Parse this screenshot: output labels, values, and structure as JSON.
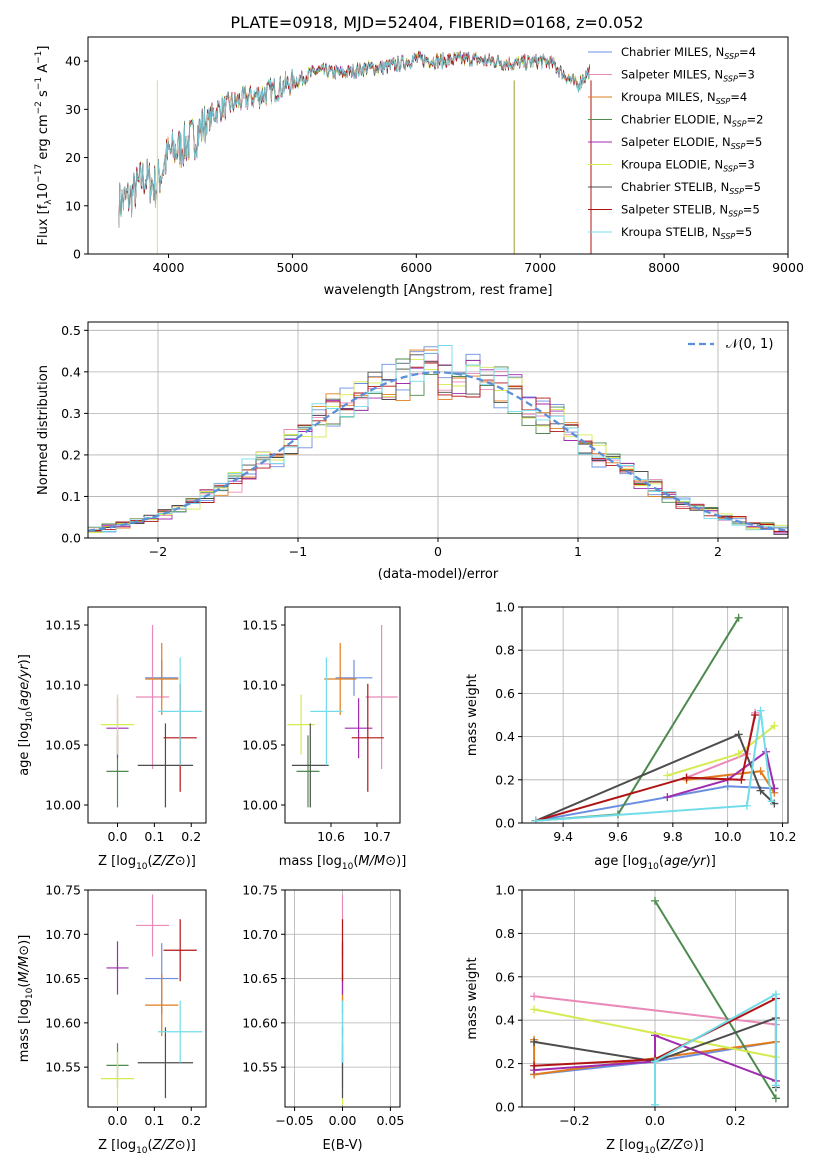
{
  "title": "PLATE=0918, MJD=52404, FIBERID=0168, z=0.052",
  "colors": {
    "Chabrier MILES": "#6b8fe0",
    "Salpeter MILES": "#e98ab8",
    "Kroupa MILES": "#e07c1c",
    "Chabrier ELODIE": "#4e8a4e",
    "Salpeter ELODIE": "#a02cb0",
    "Kroupa ELODIE": "#d6ea52",
    "Chabrier STELIB": "#4d4d4d",
    "Salpeter STELIB": "#b01515",
    "Kroupa STELIB": "#72dcea"
  },
  "chart_data": [
    {
      "id": "spectrum",
      "type": "line",
      "xlabel": "wavelength [Angstrom, rest frame]",
      "ylabel_main": "Flux [f",
      "ylabel_sub1": "λ",
      "ylabel_mid": "10",
      "ylabel_sup1": "−17",
      "ylabel_mid2": " erg cm",
      "ylabel_sup2": "−2",
      "ylabel_mid3": " s",
      "ylabel_sup3": "−1",
      "ylabel_mid4": " A",
      "ylabel_sup4": "−1",
      "ylabel_end": "]",
      "xlim": [
        3350,
        9000
      ],
      "ylim": [
        0,
        45
      ],
      "xticks": [
        4000,
        5000,
        6000,
        7000,
        8000,
        9000
      ],
      "yticks": [
        0,
        10,
        20,
        30,
        40
      ],
      "envelope_x": [
        3600,
        3700,
        3800,
        3900,
        4000,
        4100,
        4200,
        4300,
        4400,
        4500,
        4600,
        4800,
        5000,
        5200,
        5400,
        5600,
        5800,
        6000,
        6200,
        6400,
        6600,
        6800,
        7000,
        7100,
        7200,
        7300,
        7400
      ],
      "envelope_y": [
        10.5,
        12,
        16,
        14,
        21,
        22,
        24,
        27,
        30,
        31,
        32,
        33.5,
        35.5,
        38,
        37.5,
        38.5,
        39,
        40.5,
        40,
        40.5,
        40,
        39.5,
        40,
        39.5,
        37,
        35,
        38
      ],
      "legend": [
        {
          "model": "Chabrier MILES",
          "n": "4"
        },
        {
          "model": "Salpeter MILES",
          "n": "3"
        },
        {
          "model": "Kroupa MILES",
          "n": "4"
        },
        {
          "model": "Chabrier ELODIE",
          "n": "2"
        },
        {
          "model": "Salpeter ELODIE",
          "n": "5"
        },
        {
          "model": "Kroupa ELODIE",
          "n": "3"
        },
        {
          "model": "Chabrier STELIB",
          "n": "5"
        },
        {
          "model": "Salpeter STELIB",
          "n": "5"
        },
        {
          "model": "Kroupa STELIB",
          "n": "5"
        }
      ],
      "legend_sub": "SSP",
      "legend_prefix": "N",
      "legend_placement": "right"
    },
    {
      "id": "residuals",
      "type": "histogram",
      "xlabel": "(data-model)/error",
      "ylabel": "Normed distribution",
      "xlim": [
        -2.5,
        2.5
      ],
      "ylim": [
        0,
        0.52
      ],
      "xticks": [
        -2,
        -1,
        0,
        1,
        2
      ],
      "yticks": [
        0.0,
        0.1,
        0.2,
        0.3,
        0.4,
        0.5
      ],
      "bin_width": 0.1,
      "normal_curve_label": "𝒩(0, 1)",
      "legend_placement": "top-right",
      "grid": true
    },
    {
      "id": "age_vs_Z",
      "type": "errorbar",
      "xlabel": "Z [log10(Z/Z⊙)]",
      "ylabel": "age  [log10(age/yr)]",
      "xlim": [
        -0.08,
        0.24
      ],
      "ylim": [
        9.985,
        10.165
      ],
      "xticks": [
        0.0,
        0.1,
        0.2
      ],
      "yticks": [
        10.0,
        10.05,
        10.1,
        10.15
      ],
      "points": [
        {
          "model": "Chabrier MILES",
          "x": 0.12,
          "xerr": 0.045,
          "y": 10.106,
          "yerr": 0.015
        },
        {
          "model": "Salpeter MILES",
          "x": 0.095,
          "xerr": 0.045,
          "y": 10.09,
          "yerr": 0.06
        },
        {
          "model": "Kroupa MILES",
          "x": 0.12,
          "xerr": 0.045,
          "y": 10.105,
          "yerr": 0.03
        },
        {
          "model": "Chabrier ELODIE",
          "x": 0.0,
          "xerr": 0.03,
          "y": 10.028,
          "yerr": 0.03
        },
        {
          "model": "Salpeter ELODIE",
          "x": 0.0,
          "xerr": 0.03,
          "y": 10.064,
          "yerr": 0.025
        },
        {
          "model": "Kroupa ELODIE",
          "x": 0.0,
          "xerr": 0.045,
          "y": 10.067,
          "yerr": 0.025
        },
        {
          "model": "Chabrier STELIB",
          "x": 0.13,
          "xerr": 0.075,
          "y": 10.033,
          "yerr": 0.035
        },
        {
          "model": "Salpeter STELIB",
          "x": 0.17,
          "xerr": 0.045,
          "y": 10.056,
          "yerr": 0.045
        },
        {
          "model": "Kroupa STELIB",
          "x": 0.17,
          "xerr": 0.06,
          "y": 10.078,
          "yerr": 0.045
        }
      ]
    },
    {
      "id": "age_vs_mass",
      "type": "errorbar",
      "xlabel": "mass [log10(M/M⊙)]",
      "xlim": [
        10.5,
        10.75
      ],
      "ylim": [
        9.985,
        10.165
      ],
      "xticks": [
        10.6,
        10.7
      ],
      "yticks": [
        10.0,
        10.05,
        10.1,
        10.15
      ],
      "points": [
        {
          "model": "Chabrier MILES",
          "x": 10.65,
          "xerr": 0.04,
          "y": 10.106,
          "yerr": 0.015
        },
        {
          "model": "Salpeter MILES",
          "x": 10.71,
          "xerr": 0.035,
          "y": 10.09,
          "yerr": 0.06
        },
        {
          "model": "Kroupa MILES",
          "x": 10.62,
          "xerr": 0.035,
          "y": 10.105,
          "yerr": 0.03
        },
        {
          "model": "Chabrier ELODIE",
          "x": 10.55,
          "xerr": 0.025,
          "y": 10.028,
          "yerr": 0.03
        },
        {
          "model": "Salpeter ELODIE",
          "x": 10.66,
          "xerr": 0.03,
          "y": 10.064,
          "yerr": 0.025
        },
        {
          "model": "Kroupa ELODIE",
          "x": 10.535,
          "xerr": 0.03,
          "y": 10.067,
          "yerr": 0.025
        },
        {
          "model": "Chabrier STELIB",
          "x": 10.555,
          "xerr": 0.04,
          "y": 10.033,
          "yerr": 0.035
        },
        {
          "model": "Salpeter STELIB",
          "x": 10.68,
          "xerr": 0.035,
          "y": 10.056,
          "yerr": 0.045
        },
        {
          "model": "Kroupa STELIB",
          "x": 10.59,
          "xerr": 0.035,
          "y": 10.078,
          "yerr": 0.045
        }
      ]
    },
    {
      "id": "weight_vs_age",
      "type": "line",
      "xlabel": "age  [log10(age/yr)]",
      "ylabel": "mass weight",
      "xlim": [
        9.25,
        10.22
      ],
      "ylim": [
        0,
        1.0
      ],
      "xticks": [
        9.4,
        9.6,
        9.8,
        10.0,
        10.2
      ],
      "yticks": [
        0.0,
        0.2,
        0.4,
        0.6,
        0.8,
        1.0
      ],
      "grid": true,
      "series": [
        {
          "model": "Chabrier MILES",
          "x": [
            9.3,
            10.0,
            10.17
          ],
          "y": [
            0.01,
            0.17,
            0.16
          ]
        },
        {
          "model": "Salpeter MILES",
          "x": [
            9.85,
            10.07,
            10.1
          ],
          "y": [
            0.21,
            0.32,
            0.51
          ]
        },
        {
          "model": "Kroupa MILES",
          "x": [
            9.85,
            10.12,
            10.17
          ],
          "y": [
            0.2,
            0.24,
            0.14
          ]
        },
        {
          "model": "Chabrier ELODIE",
          "x": [
            9.3,
            9.6,
            10.04
          ],
          "y": [
            0.01,
            0.04,
            0.95
          ]
        },
        {
          "model": "Salpeter ELODIE",
          "x": [
            9.78,
            10.0,
            10.14,
            10.17
          ],
          "y": [
            0.12,
            0.2,
            0.33,
            0.16
          ]
        },
        {
          "model": "Kroupa ELODIE",
          "x": [
            9.78,
            10.04,
            10.17
          ],
          "y": [
            0.22,
            0.32,
            0.45
          ]
        },
        {
          "model": "Chabrier STELIB",
          "x": [
            9.3,
            10.04,
            10.12,
            10.17
          ],
          "y": [
            0.01,
            0.41,
            0.15,
            0.09
          ]
        },
        {
          "model": "Salpeter STELIB",
          "x": [
            9.3,
            9.85,
            10.05,
            10.1
          ],
          "y": [
            0.01,
            0.21,
            0.2,
            0.5
          ]
        },
        {
          "model": "Kroupa STELIB",
          "x": [
            9.3,
            10.07,
            10.12,
            10.16
          ],
          "y": [
            0.01,
            0.08,
            0.52,
            0.1
          ]
        }
      ]
    },
    {
      "id": "mass_vs_Z",
      "type": "errorbar",
      "xlabel": "Z [log10(Z/Z⊙)]",
      "ylabel": "mass [log10(M/M⊙)]",
      "xlim": [
        -0.08,
        0.24
      ],
      "ylim": [
        10.505,
        10.75
      ],
      "xticks": [
        0.0,
        0.1,
        0.2
      ],
      "yticks": [
        10.55,
        10.6,
        10.65,
        10.7,
        10.75
      ],
      "points": [
        {
          "model": "Chabrier MILES",
          "x": 0.12,
          "xerr": 0.045,
          "y": 10.65,
          "yerr": 0.04
        },
        {
          "model": "Salpeter MILES",
          "x": 0.095,
          "xerr": 0.045,
          "y": 10.71,
          "yerr": 0.035
        },
        {
          "model": "Kroupa MILES",
          "x": 0.12,
          "xerr": 0.045,
          "y": 10.62,
          "yerr": 0.035
        },
        {
          "model": "Chabrier ELODIE",
          "x": 0.0,
          "xerr": 0.03,
          "y": 10.552,
          "yerr": 0.025
        },
        {
          "model": "Salpeter ELODIE",
          "x": 0.0,
          "xerr": 0.03,
          "y": 10.662,
          "yerr": 0.03
        },
        {
          "model": "Kroupa ELODIE",
          "x": 0.0,
          "xerr": 0.045,
          "y": 10.537,
          "yerr": 0.03
        },
        {
          "model": "Chabrier STELIB",
          "x": 0.13,
          "xerr": 0.075,
          "y": 10.555,
          "yerr": 0.04
        },
        {
          "model": "Salpeter STELIB",
          "x": 0.17,
          "xerr": 0.045,
          "y": 10.682,
          "yerr": 0.035
        },
        {
          "model": "Kroupa STELIB",
          "x": 0.17,
          "xerr": 0.06,
          "y": 10.59,
          "yerr": 0.035
        }
      ]
    },
    {
      "id": "mass_vs_ebv",
      "type": "errorbar",
      "xlabel": "E(B-V)",
      "xlim": [
        -0.06,
        0.06
      ],
      "ylim": [
        10.505,
        10.75
      ],
      "xticks": [
        -0.05,
        0.0,
        0.05
      ],
      "yticks": [
        10.55,
        10.6,
        10.65,
        10.7,
        10.75
      ],
      "grid": true,
      "points": [
        {
          "model": "Chabrier MILES",
          "x": 0.0,
          "y": 10.65,
          "yerr": 0.04
        },
        {
          "model": "Salpeter MILES",
          "x": 0.0,
          "y": 10.71,
          "yerr": 0.035
        },
        {
          "model": "Kroupa MILES",
          "x": 0.0,
          "y": 10.62,
          "yerr": 0.035
        },
        {
          "model": "Chabrier ELODIE",
          "x": 0.0,
          "y": 10.552,
          "yerr": 0.025
        },
        {
          "model": "Salpeter ELODIE",
          "x": 0.0,
          "y": 10.662,
          "yerr": 0.03
        },
        {
          "model": "Kroupa ELODIE",
          "x": 0.0,
          "y": 10.537,
          "yerr": 0.03
        },
        {
          "model": "Chabrier STELIB",
          "x": 0.0,
          "y": 10.555,
          "yerr": 0.04
        },
        {
          "model": "Salpeter STELIB",
          "x": 0.0,
          "y": 10.682,
          "yerr": 0.035
        },
        {
          "model": "Kroupa STELIB",
          "x": 0.0,
          "y": 10.59,
          "yerr": 0.035
        }
      ]
    },
    {
      "id": "weight_vs_Z",
      "type": "line",
      "xlabel": "Z [log10(Z/Z⊙)]",
      "ylabel": "mass weight",
      "xlim": [
        -0.33,
        0.33
      ],
      "ylim": [
        0,
        1.0
      ],
      "xticks": [
        -0.2,
        0.0,
        0.2
      ],
      "yticks": [
        0.0,
        0.2,
        0.4,
        0.6,
        0.8,
        1.0
      ],
      "grid": true,
      "series": [
        {
          "model": "Chabrier MILES",
          "x": [
            -0.3,
            0.0,
            0.3
          ],
          "y": [
            0.15,
            0.21,
            0.3
          ]
        },
        {
          "model": "Salpeter MILES",
          "x": [
            -0.3,
            0.3
          ],
          "y": [
            0.51,
            0.38
          ]
        },
        {
          "model": "Kroupa MILES",
          "x": [
            -0.3,
            -0.3,
            0.3
          ],
          "y": [
            0.31,
            0.15,
            0.3
          ]
        },
        {
          "model": "Chabrier ELODIE",
          "x": [
            0.0,
            0.3
          ],
          "y": [
            0.95,
            0.04
          ]
        },
        {
          "model": "Salpeter ELODIE",
          "x": [
            -0.3,
            0.0,
            0.0,
            0.3
          ],
          "y": [
            0.17,
            0.21,
            0.33,
            0.12
          ]
        },
        {
          "model": "Kroupa ELODIE",
          "x": [
            -0.3,
            0.3
          ],
          "y": [
            0.45,
            0.23
          ]
        },
        {
          "model": "Chabrier STELIB",
          "x": [
            -0.3,
            0.0,
            0.3,
            0.3
          ],
          "y": [
            0.3,
            0.21,
            0.41,
            0.09
          ]
        },
        {
          "model": "Salpeter STELIB",
          "x": [
            -0.3,
            0.0,
            0.3
          ],
          "y": [
            0.19,
            0.22,
            0.5
          ]
        },
        {
          "model": "Kroupa STELIB",
          "x": [
            0.0,
            0.0,
            0.3,
            0.3
          ],
          "y": [
            0.01,
            0.21,
            0.52,
            0.1
          ]
        }
      ]
    }
  ]
}
